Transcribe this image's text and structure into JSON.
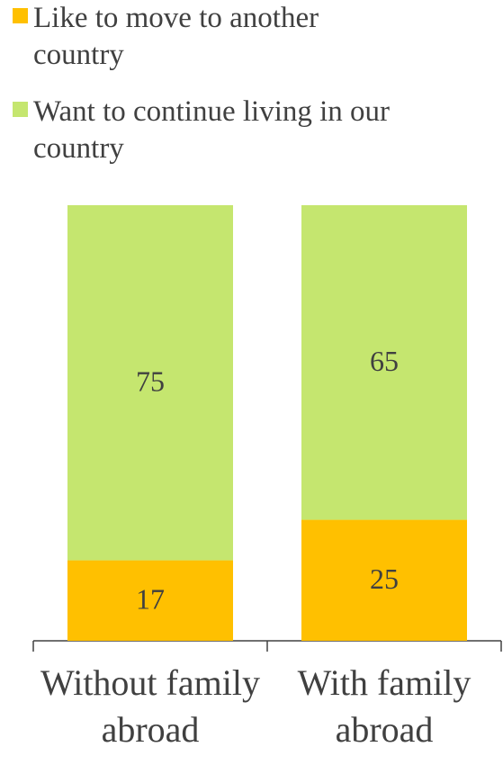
{
  "chart_data": {
    "type": "bar",
    "stacking": "percent",
    "categories": [
      "Without family abroad",
      "With family abroad"
    ],
    "series": [
      {
        "name": "Like to move to another country",
        "color": "#ffc000",
        "values": [
          17,
          25
        ]
      },
      {
        "name": "Want to continue living in our country",
        "color": "#c5e66f",
        "values": [
          75,
          65
        ]
      }
    ],
    "legend": "top-left"
  }
}
